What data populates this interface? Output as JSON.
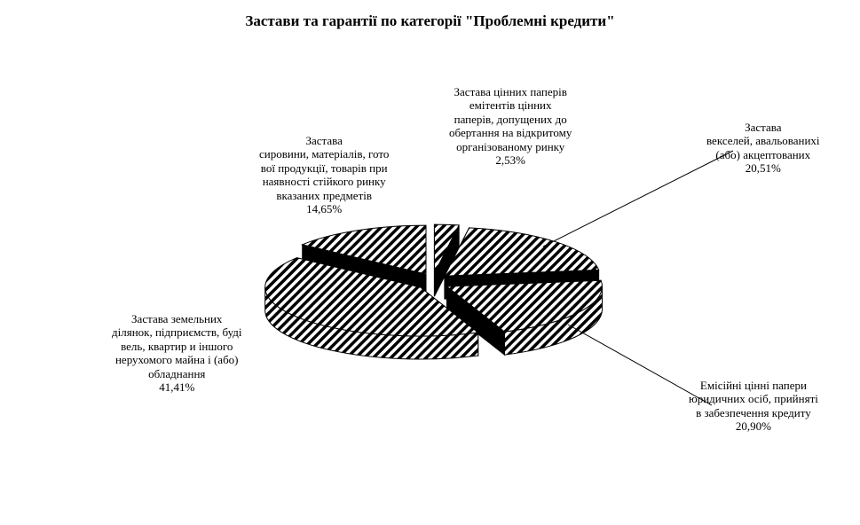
{
  "chart_data": {
    "type": "pie",
    "title": "Застави та гарантії по категорії \"Проблемні кредити\"",
    "slices": [
      {
        "label_lines": [
          "Застава цінних паперів",
          "емітентів цінних",
          "паперів, допущених до",
          "обертання на відкритому",
          "організованому ринку"
        ],
        "value": 2.53,
        "value_label": "2,53%"
      },
      {
        "label_lines": [
          "Застава",
          "векселей, авальованихі",
          "(або) акцептованих"
        ],
        "value": 20.51,
        "value_label": "20,51%"
      },
      {
        "label_lines": [
          "Емісійні цінні папери",
          "юридичних осіб, прийняті",
          "в забезпечення кредиту"
        ],
        "value": 20.9,
        "value_label": "20,90%"
      },
      {
        "label_lines": [
          "Застава земельних",
          "ділянок, підприємств, буді",
          "вель, квартир и іншого",
          "нерухомого майна і (або)",
          "обладнання"
        ],
        "value": 41.41,
        "value_label": "41,41%"
      },
      {
        "label_lines": [
          "Застава",
          "сировини, матеріалів, гото",
          "вої продукції, товарів при",
          "наявності стійкого ринку",
          "вказаних предметів"
        ],
        "value": 14.65,
        "value_label": "14,65%"
      }
    ]
  },
  "colors": {
    "stripe": "#000000",
    "background": "#ffffff"
  }
}
